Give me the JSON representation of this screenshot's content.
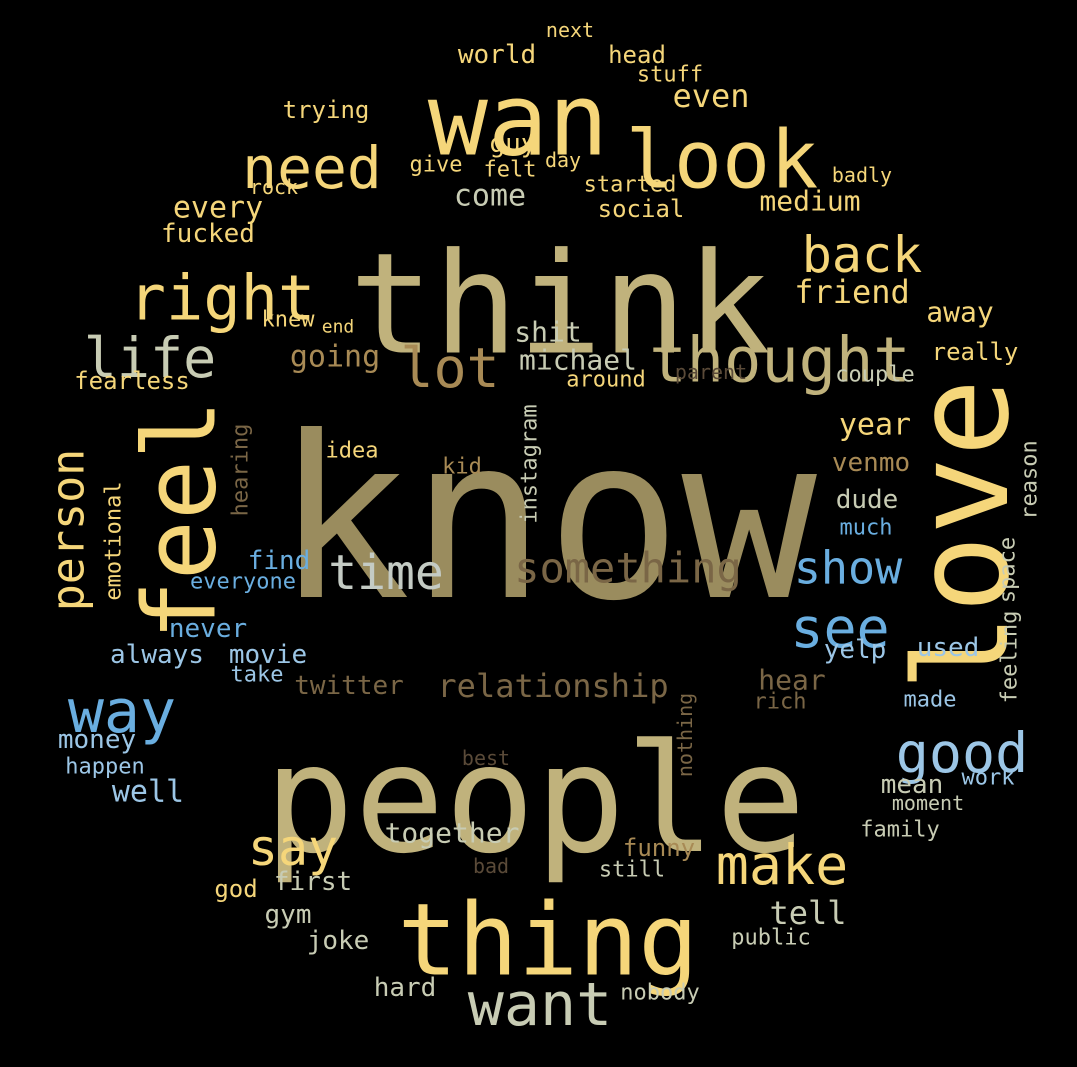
{
  "colors": {
    "background": "#000000",
    "gold": "#f5d67a",
    "olive": "#c0b27c",
    "khaki": "#9a8c5e",
    "bronze": "#a88a55",
    "brown": "#7a6646",
    "dim": "#5a4a38",
    "blue": "#6aaee0",
    "lightblue": "#9cc6e6",
    "grey": "#c4cbc4",
    "sage": "#c8ccb4",
    "tan": "#d9bd7a"
  },
  "words": [
    {
      "text": "know"
    },
    {
      "text": "people"
    },
    {
      "text": "think"
    },
    {
      "text": "love"
    },
    {
      "text": "thing"
    },
    {
      "text": "wan"
    },
    {
      "text": "feel"
    },
    {
      "text": "look"
    },
    {
      "text": "thought"
    },
    {
      "text": "right"
    },
    {
      "text": "need"
    },
    {
      "text": "way"
    },
    {
      "text": "want"
    },
    {
      "text": "good"
    },
    {
      "text": "lot"
    },
    {
      "text": "life"
    },
    {
      "text": "back"
    },
    {
      "text": "something"
    },
    {
      "text": "see"
    },
    {
      "text": "make"
    },
    {
      "text": "show"
    },
    {
      "text": "time"
    },
    {
      "text": "say"
    },
    {
      "text": "person"
    },
    {
      "text": "relationship"
    },
    {
      "text": "world"
    },
    {
      "text": "head"
    },
    {
      "text": "next"
    },
    {
      "text": "stuff"
    },
    {
      "text": "trying"
    },
    {
      "text": "even"
    },
    {
      "text": "guy"
    },
    {
      "text": "give"
    },
    {
      "text": "felt"
    },
    {
      "text": "day"
    },
    {
      "text": "badly"
    },
    {
      "text": "rock"
    },
    {
      "text": "started"
    },
    {
      "text": "come"
    },
    {
      "text": "every"
    },
    {
      "text": "social"
    },
    {
      "text": "medium"
    },
    {
      "text": "fucked"
    },
    {
      "text": "friend"
    },
    {
      "text": "away"
    },
    {
      "text": "knew"
    },
    {
      "text": "end"
    },
    {
      "text": "shit"
    },
    {
      "text": "going"
    },
    {
      "text": "michael"
    },
    {
      "text": "really"
    },
    {
      "text": "fearless"
    },
    {
      "text": "around"
    },
    {
      "text": "parent"
    },
    {
      "text": "couple"
    },
    {
      "text": "year"
    },
    {
      "text": "idea"
    },
    {
      "text": "kid"
    },
    {
      "text": "venmo"
    },
    {
      "text": "hearing"
    },
    {
      "text": "instagram"
    },
    {
      "text": "reason"
    },
    {
      "text": "dude"
    },
    {
      "text": "emotional"
    },
    {
      "text": "much"
    },
    {
      "text": "find"
    },
    {
      "text": "everyone"
    },
    {
      "text": "space"
    },
    {
      "text": "never"
    },
    {
      "text": "used"
    },
    {
      "text": "always"
    },
    {
      "text": "movie"
    },
    {
      "text": "yelp"
    },
    {
      "text": "feeling"
    },
    {
      "text": "take"
    },
    {
      "text": "twitter"
    },
    {
      "text": "hear"
    },
    {
      "text": "rich"
    },
    {
      "text": "made"
    },
    {
      "text": "nothing"
    },
    {
      "text": "money"
    },
    {
      "text": "happen"
    },
    {
      "text": "best"
    },
    {
      "text": "work"
    },
    {
      "text": "mean"
    },
    {
      "text": "well"
    },
    {
      "text": "moment"
    },
    {
      "text": "together"
    },
    {
      "text": "family"
    },
    {
      "text": "funny"
    },
    {
      "text": "bad"
    },
    {
      "text": "god"
    },
    {
      "text": "first"
    },
    {
      "text": "still"
    },
    {
      "text": "gym"
    },
    {
      "text": "tell"
    },
    {
      "text": "joke"
    },
    {
      "text": "public"
    },
    {
      "text": "hard"
    },
    {
      "text": "nobody"
    }
  ]
}
